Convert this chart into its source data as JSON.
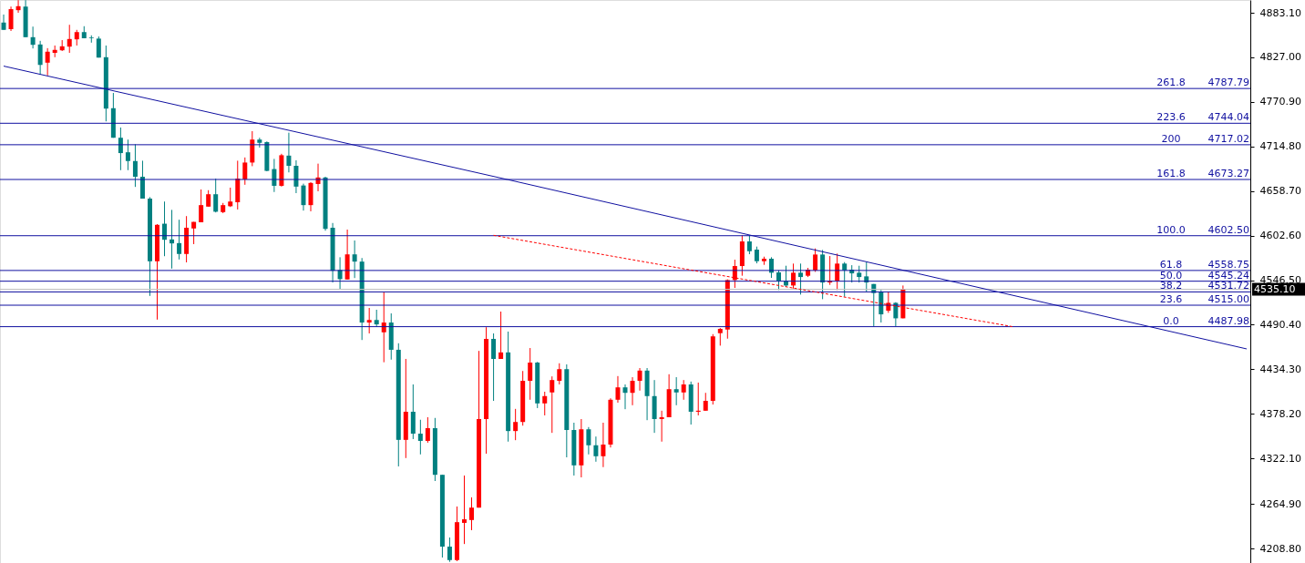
{
  "chart_data": {
    "type": "candlestick",
    "categories": [
      null,
      null,
      null,
      null,
      null,
      null,
      null,
      null,
      null,
      null,
      null,
      null,
      null,
      null,
      null,
      null,
      null,
      null,
      null,
      null,
      null,
      null,
      null,
      null,
      null,
      null,
      null,
      null,
      null,
      null,
      null,
      null,
      null,
      null,
      null,
      null,
      null,
      null,
      null,
      null,
      null,
      null,
      null,
      null,
      null,
      null,
      null,
      null,
      null,
      null,
      null,
      null,
      null,
      null,
      null,
      null,
      null,
      null,
      null,
      null,
      null,
      null,
      null,
      null,
      null,
      null,
      null,
      null,
      null,
      null,
      null,
      null,
      null,
      null,
      null,
      null,
      null,
      null,
      null,
      null,
      null,
      null,
      null,
      null,
      null,
      null,
      null,
      null,
      null,
      null,
      null,
      null,
      null,
      null,
      null,
      null,
      null,
      null,
      null,
      null,
      null,
      null,
      null,
      null,
      null,
      null,
      null,
      null,
      null,
      null,
      null,
      null,
      null,
      null,
      null,
      null,
      null,
      null,
      null,
      null,
      null,
      null,
      null,
      null,
      null,
      null,
      null,
      null,
      null,
      null,
      null,
      null,
      null,
      null,
      null,
      null,
      null,
      null,
      null,
      null,
      null,
      null,
      null,
      null,
      null,
      null,
      null,
      null,
      null,
      null,
      null,
      null,
      null,
      null,
      null,
      null,
      null,
      null,
      null,
      null,
      null,
      null,
      null,
      null,
      null,
      null,
      null,
      null,
      null,
      null,
      null
    ],
    "ohlc": [
      [
        4870.8,
        4880.9,
        4861.6,
        4861.6
      ],
      [
        4862.5,
        4890.9,
        4860.2,
        4887.7
      ],
      [
        4886.4,
        4899,
        4883.1,
        4891.4
      ],
      [
        4890.9,
        4899,
        4852.4,
        4852.4
      ],
      [
        4852.4,
        4865.7,
        4838.2,
        4842.8
      ],
      [
        4843.2,
        4847.8,
        4805.2,
        4817.5
      ],
      [
        4820.3,
        4838.6,
        4804.3,
        4834.1
      ],
      [
        4832.7,
        4841.9,
        4827.2,
        4836.4
      ],
      [
        4835.9,
        4848.7,
        4835.0,
        4840.9
      ],
      [
        4840.5,
        4868.0,
        4832.7,
        4850.1
      ],
      [
        4849.7,
        4861.6,
        4841.9,
        4858.8
      ],
      [
        4858.8,
        4866.2,
        4851.0,
        4851.0
      ],
      [
        4851.9,
        4854.7,
        4845.5,
        4851.0
      ],
      [
        4850.6,
        4853.3,
        4826.7,
        4826.7
      ],
      [
        4827.2,
        4841.9,
        4746.4,
        4762.5
      ],
      [
        4763.0,
        4782.2,
        4725.8,
        4725.8
      ],
      [
        4725.8,
        4738.7,
        4685.0,
        4706.5
      ],
      [
        4707.5,
        4723.5,
        4685.0,
        4696.5
      ],
      [
        4696.5,
        4717.6,
        4663.9,
        4676.7
      ],
      [
        4676.7,
        4696.9,
        4649.2,
        4649.2
      ],
      [
        4649.2,
        4651.0,
        4526.7,
        4570.3
      ],
      [
        4570.3,
        4617.1,
        4496.9,
        4616.2
      ],
      [
        4617.6,
        4645.5,
        4576.7,
        4597.4
      ],
      [
        4597.8,
        4635.0,
        4561.1,
        4592.8
      ],
      [
        4593.2,
        4622.6,
        4572.6,
        4579.5
      ],
      [
        4579.5,
        4627.2,
        4568.9,
        4612.5
      ],
      [
        4611.6,
        4619.9,
        4591.9,
        4619.9
      ],
      [
        4619.4,
        4660.7,
        4619.4,
        4641.0
      ],
      [
        4639.1,
        4659.8,
        4639.1,
        4654.7
      ],
      [
        4654.7,
        4674.4,
        4631.8,
        4632.7
      ],
      [
        4632.2,
        4643.7,
        4630.9,
        4641.0
      ],
      [
        4639.6,
        4663.0,
        4638.6,
        4645.5
      ],
      [
        4644.6,
        4696.9,
        4635.5,
        4674.4
      ],
      [
        4673.5,
        4701.0,
        4666.6,
        4694.6
      ],
      [
        4694.6,
        4734.1,
        4690.0,
        4723.5
      ],
      [
        4723.5,
        4725.8,
        4713.4,
        4719.4
      ],
      [
        4720.3,
        4721.2,
        4683.6,
        4684.1
      ],
      [
        4686.4,
        4699.2,
        4657.5,
        4665.3
      ],
      [
        4665.3,
        4705.6,
        4664.3,
        4703.8
      ],
      [
        4703.3,
        4732.2,
        4682.2,
        4690.5
      ],
      [
        4690.5,
        4697.4,
        4656.1,
        4664.3
      ],
      [
        4665.7,
        4668.0,
        4634.1,
        4641.0
      ],
      [
        4641.0,
        4669.9,
        4633.2,
        4668.9
      ],
      [
        4667.6,
        4693.2,
        4658.4,
        4675.8
      ],
      [
        4675.8,
        4676.7,
        4608.8,
        4611.1
      ],
      [
        4612.5,
        4618.5,
        4543.7,
        4558.4
      ],
      [
        4559.3,
        4575.4,
        4535.5,
        4547.8
      ],
      [
        4547.4,
        4610.2,
        4547.4,
        4579.0
      ],
      [
        4579.0,
        4596.5,
        4549.2,
        4569.9
      ],
      [
        4569.9,
        4574.4,
        4471.2,
        4493.2
      ],
      [
        4493.2,
        4511.6,
        4479.5,
        4496.4
      ],
      [
        4496.4,
        4509.3,
        4487.7,
        4490.9
      ],
      [
        4480.9,
        4531.3,
        4443.2,
        4493.2
      ],
      [
        4493.2,
        4504.7,
        4446.5,
        4458.9
      ],
      [
        4458.9,
        4467.1,
        4312.1,
        4345.5
      ],
      [
        4345.5,
        4447.4,
        4322.6,
        4380.9
      ],
      [
        4380.9,
        4415.3,
        4346.5,
        4353.3
      ],
      [
        4353.3,
        4370.8,
        4327.2,
        4344.2
      ],
      [
        4344.2,
        4374.0,
        4341.9,
        4360.2
      ],
      [
        4360.2,
        4373.1,
        4293.7,
        4301.5
      ],
      [
        4301.5,
        4301.5,
        4197.4,
        4211.1
      ],
      [
        4211.1,
        4222.6,
        4192.0,
        4194.2
      ],
      [
        4194.2,
        4261.6,
        4192.8,
        4241.9
      ],
      [
        4241.0,
        4300.6,
        4214.4,
        4245.5
      ],
      [
        4244.6,
        4273.1,
        4231.8,
        4260.2
      ],
      [
        4260.2,
        4457.5,
        4260.2,
        4371.7
      ],
      [
        4371.7,
        4487.3,
        4328.1,
        4472.6
      ],
      [
        4472.6,
        4479.5,
        4394.6,
        4447.4
      ],
      [
        4447.4,
        4507.0,
        4447.4,
        4455.6
      ],
      [
        4455.6,
        4481.8,
        4343.3,
        4356.6
      ],
      [
        4356.6,
        4384.5,
        4345.1,
        4368.0
      ],
      [
        4368.0,
        4432.2,
        4363.4,
        4419.8
      ],
      [
        4419.8,
        4461.1,
        4396.0,
        4442.8
      ],
      [
        4442.8,
        4443.7,
        4385.5,
        4391.4
      ],
      [
        4391.4,
        4406.1,
        4376.3,
        4400.6
      ],
      [
        4405.2,
        4425.4,
        4354.3,
        4420.8
      ],
      [
        4419.8,
        4441.9,
        4415.3,
        4434.5
      ],
      [
        4434.5,
        4440.5,
        4323.5,
        4357.9
      ],
      [
        4357.9,
        4367.1,
        4300.6,
        4313.4
      ],
      [
        4313.4,
        4371.7,
        4298.3,
        4358.8
      ],
      [
        4358.8,
        4361.6,
        4327.2,
        4338.7
      ],
      [
        4338.7,
        4349.7,
        4318.0,
        4324.9
      ],
      [
        4324.9,
        4367.1,
        4311.2,
        4339.6
      ],
      [
        4339.6,
        4397.8,
        4335.9,
        4396.0
      ],
      [
        4396.0,
        4425.8,
        4392.3,
        4411.6
      ],
      [
        4411.6,
        4415.3,
        4384.1,
        4404.7
      ],
      [
        4404.7,
        4424.4,
        4389.1,
        4419.8
      ],
      [
        4419.8,
        4435.9,
        4407.5,
        4432.7
      ],
      [
        4432.7,
        4435.9,
        4370.3,
        4400.6
      ],
      [
        4400.6,
        4420.8,
        4354.3,
        4371.7
      ],
      [
        4371.7,
        4382.2,
        4343.3,
        4374.0
      ],
      [
        4374.0,
        4428.1,
        4374.0,
        4409.3
      ],
      [
        4409.3,
        4424.4,
        4389.1,
        4405.2
      ],
      [
        4405.2,
        4420.8,
        4396.0,
        4415.3
      ],
      [
        4415.3,
        4418.9,
        4364.8,
        4380.9
      ],
      [
        4380.9,
        4417.6,
        4376.3,
        4382.2
      ],
      [
        4382.2,
        4404.7,
        4382.2,
        4394.6
      ],
      [
        4394.6,
        4478.6,
        4390.0,
        4475.8
      ],
      [
        4479.8,
        4486.3,
        4464.1,
        4485.2
      ],
      [
        4484.4,
        4547.5,
        4472.9,
        4546.7
      ],
      [
        4546.7,
        4572.3,
        4536.8,
        4564.3
      ],
      [
        4564.3,
        4602.9,
        4552.1,
        4595.3
      ],
      [
        4595.3,
        4602.9,
        4579.2,
        4583.0
      ],
      [
        4585.0,
        4588.8,
        4567.7,
        4570.4
      ],
      [
        4570.4,
        4576.1,
        4565.8,
        4573.5
      ],
      [
        4573.5,
        4575.4,
        4549.4,
        4555.9
      ],
      [
        4556.3,
        4558.9,
        4534.1,
        4545.6
      ],
      [
        4545.6,
        4564.7,
        4537.9,
        4539.8
      ],
      [
        4539.8,
        4567.4,
        4536.0,
        4555.9
      ],
      [
        4555.9,
        4567.4,
        4528.4,
        4550.5
      ],
      [
        4552.1,
        4562.0,
        4550.5,
        4559.7
      ],
      [
        4558.9,
        4586.5,
        4557.0,
        4578.8
      ],
      [
        4578.8,
        4584.6,
        4522.6,
        4543.6
      ],
      [
        4543.6,
        4576.9,
        4540.6,
        4545.6
      ],
      [
        4545.6,
        4580.0,
        4534.1,
        4567.4
      ],
      [
        4567.4,
        4569.3,
        4525.7,
        4558.9
      ],
      [
        4559.7,
        4565.4,
        4543.6,
        4555.1
      ],
      [
        4555.9,
        4564.7,
        4543.6,
        4550.5
      ],
      [
        4551.3,
        4569.3,
        4532.2,
        4543.6
      ],
      [
        4541.7,
        4541.7,
        4488.2,
        4530.3
      ],
      [
        4532.2,
        4534.1,
        4493.2,
        4503.5
      ],
      [
        4508.1,
        4532.2,
        4505.4,
        4518.0
      ],
      [
        4518.0,
        4518.8,
        4488.2,
        4498.5
      ],
      [
        4498.5,
        4539.8,
        4498.5,
        4535.1
      ],
      null,
      null,
      null,
      null,
      null,
      null,
      null,
      null,
      null,
      null,
      null,
      null,
      null,
      null,
      null,
      null,
      null,
      null,
      null,
      null,
      null,
      null,
      null,
      null,
      null,
      null,
      null,
      null,
      null,
      null,
      null,
      null,
      null,
      null,
      null,
      null,
      null,
      null,
      null,
      null,
      null,
      null,
      null,
      null,
      null,
      null,
      null
    ],
    "colors": [
      "#008080",
      "#ff0000",
      "#ff0000",
      "#008080",
      "#008080",
      "#008080",
      "#ff0000",
      "#ff0000",
      "#ff0000",
      "#ff0000",
      "#ff0000",
      "#008080",
      "#008080",
      "#008080",
      "#008080",
      "#008080",
      "#008080",
      "#008080",
      "#008080",
      "#008080",
      "#008080",
      "#ff0000",
      "#008080",
      "#008080",
      "#008080",
      "#ff0000",
      "#ff0000",
      "#ff0000",
      "#ff0000",
      "#008080",
      "#ff0000",
      "#ff0000",
      "#ff0000",
      "#ff0000",
      "#ff0000",
      "#008080",
      "#008080",
      "#008080",
      "#ff0000",
      "#008080",
      "#008080",
      "#008080",
      "#ff0000",
      "#ff0000",
      "#008080",
      "#008080",
      "#008080",
      "#ff0000",
      "#008080",
      "#008080",
      "#ff0000",
      "#008080",
      "#ff0000",
      "#008080",
      "#008080",
      "#ff0000",
      "#008080",
      "#008080",
      "#ff0000",
      "#008080",
      "#008080",
      "#008080",
      "#ff0000",
      "#ff0000",
      "#ff0000",
      "#ff0000",
      "#ff0000",
      "#008080",
      "#ff0000",
      "#008080",
      "#ff0000",
      "#ff0000",
      "#ff0000",
      "#008080",
      "#ff0000",
      "#ff0000",
      "#ff0000",
      "#008080",
      "#008080",
      "#ff0000",
      "#008080",
      "#008080",
      "#ff0000",
      "#ff0000",
      "#ff0000",
      "#008080",
      "#ff0000",
      "#ff0000",
      "#008080",
      "#008080",
      "#ff0000",
      "#ff0000",
      "#008080",
      "#ff0000",
      "#008080",
      "#ff0000",
      "#ff0000",
      "#ff0000",
      "#ff0000",
      "#ff0000",
      "#ff0000",
      "#ff0000",
      "#008080",
      "#008080",
      "#ff0000",
      "#008080",
      "#008080",
      "#008080",
      "#ff0000",
      "#008080",
      "#ff0000",
      "#ff0000",
      "#008080",
      "#ff0000",
      "#ff0000",
      "#008080",
      "#008080",
      "#008080",
      "#008080",
      "#008080",
      "#008080",
      "#ff0000",
      "#008080",
      "#ff0000",
      null,
      null,
      null,
      null,
      null,
      null,
      null,
      null,
      null,
      null,
      null,
      null,
      null,
      null,
      null,
      null,
      null,
      null,
      null,
      null,
      null,
      null,
      null,
      null,
      null,
      null,
      null,
      null,
      null,
      null,
      null,
      null,
      null,
      null,
      null,
      null,
      null,
      null,
      null,
      null,
      null,
      null,
      null,
      null,
      null,
      null,
      null
    ],
    "series": [
      {
        "type": "line",
        "color": "#1010a0",
        "line_style": "solid",
        "values": [
          4816,
          null,
          null,
          null,
          null,
          null,
          null,
          null,
          null,
          null,
          null,
          null,
          null,
          null,
          null,
          null,
          null,
          null,
          null,
          null,
          null,
          null,
          null,
          null,
          null,
          null,
          null,
          null,
          null,
          null,
          null,
          null,
          null,
          null,
          null,
          null,
          null,
          null,
          null,
          null,
          null,
          null,
          null,
          null,
          null,
          null,
          null,
          null,
          null,
          null,
          null,
          null,
          null,
          null,
          null,
          null,
          null,
          null,
          null,
          null,
          null,
          null,
          null,
          null,
          null,
          null,
          null,
          null,
          null,
          4673,
          null,
          null,
          null,
          null,
          null,
          null,
          null,
          null,
          null,
          null,
          null,
          null,
          null,
          null,
          null,
          null,
          null,
          null,
          null,
          null,
          null,
          null,
          null,
          null,
          null,
          null,
          null,
          null,
          null,
          null,
          null,
          null,
          null,
          null,
          null,
          null,
          null,
          null,
          null,
          null,
          null,
          null,
          null,
          null,
          null,
          null,
          null,
          null,
          null,
          null,
          null,
          null,
          null,
          null,
          null,
          null,
          null,
          null,
          null,
          null,
          null,
          null,
          null,
          null,
          null,
          null,
          null,
          null,
          null,
          null,
          null,
          null,
          null,
          null,
          null,
          null,
          null,
          null,
          null,
          null,
          null,
          null,
          null,
          null,
          null,
          null,
          null,
          null,
          null,
          null,
          null,
          null,
          null,
          null,
          null,
          null,
          null,
          null,
          null,
          null,
          4460
        ]
      },
      {
        "type": "line",
        "color": "#ff0000",
        "line_style": "dashed",
        "values": [
          null,
          null,
          null,
          null,
          null,
          null,
          null,
          null,
          null,
          null,
          null,
          null,
          null,
          null,
          null,
          null,
          null,
          null,
          null,
          null,
          null,
          null,
          null,
          null,
          null,
          null,
          null,
          null,
          null,
          null,
          null,
          null,
          null,
          null,
          null,
          null,
          null,
          null,
          null,
          null,
          null,
          null,
          null,
          null,
          null,
          null,
          null,
          null,
          null,
          null,
          null,
          null,
          null,
          null,
          null,
          null,
          null,
          null,
          null,
          null,
          null,
          null,
          null,
          null,
          null,
          null,
          null,
          4603,
          null,
          null,
          null,
          null,
          null,
          null,
          null,
          null,
          null,
          null,
          null,
          null,
          null,
          null,
          null,
          null,
          null,
          null,
          null,
          null,
          null,
          null,
          null,
          null,
          null,
          null,
          null,
          null,
          null,
          null,
          null,
          null,
          null,
          null,
          null,
          null,
          null,
          null,
          null,
          null,
          null,
          null,
          null,
          null,
          null,
          null,
          null,
          null,
          null,
          null,
          null,
          null,
          null,
          null,
          null,
          null,
          null,
          null,
          null,
          null,
          null,
          null,
          null,
          null,
          null,
          null,
          null,
          null,
          null,
          null,
          4488,
          null,
          null,
          null,
          null,
          null,
          null,
          null,
          null,
          null,
          null,
          null,
          null,
          null,
          null,
          null,
          null,
          null,
          null,
          null,
          null,
          null,
          null,
          null,
          null,
          null,
          null,
          null,
          null,
          null,
          null,
          null,
          null
        ]
      }
    ],
    "ref_lines": [
      {
        "axis": "y",
        "value": 4787.79,
        "label": "4787.79",
        "color": "#1010a0"
      },
      {
        "axis": "y",
        "value": 4744.04,
        "label": "4744.04",
        "color": "#1010a0"
      },
      {
        "axis": "y",
        "value": 4717.02,
        "label": "4717.02",
        "color": "#1010a0"
      },
      {
        "axis": "y",
        "value": 4673.27,
        "label": "4673.27",
        "color": "#1010a0"
      },
      {
        "axis": "y",
        "value": 4602.5,
        "label": "4602.50",
        "color": "#1010a0"
      },
      {
        "axis": "y",
        "value": 4558.75,
        "label": "4558.75",
        "color": "#1010a0"
      },
      {
        "axis": "y",
        "value": 4545.24,
        "label": "4545.24",
        "color": "#1010a0"
      },
      {
        "axis": "y",
        "value": 4531.72,
        "label": "4531.72",
        "color": "#1010a0"
      },
      {
        "axis": "y",
        "value": 4515.0,
        "label": "4515.00",
        "color": "#1010a0"
      },
      {
        "axis": "y",
        "value": 4487.98,
        "label": "4487.98",
        "color": "#1010a0"
      },
      {
        "axis": "y",
        "value": 4535.1,
        "label": "4535.10",
        "color": "#c0c0c0"
      }
    ],
    "annotations": [
      {
        "text": "261.8",
        "y": 4787.79
      },
      {
        "text": "223.6",
        "y": 4744.04
      },
      {
        "text": "200",
        "y": 4717.02
      },
      {
        "text": "161.8",
        "y": 4673.27
      },
      {
        "text": "100.0",
        "y": 4602.5
      },
      {
        "text": "61.8",
        "y": 4558.75
      },
      {
        "text": "50.0",
        "y": 4545.24
      },
      {
        "text": "38.2",
        "y": 4531.72
      },
      {
        "text": "23.6",
        "y": 4515.0
      },
      {
        "text": "0.0",
        "y": 4487.98
      }
    ],
    "ylim": [
      4190.5,
      4899.2
    ],
    "yticks": [
      {
        "value": 4883.1,
        "label": "4883.10"
      },
      {
        "value": 4827.0,
        "label": "4827.00"
      },
      {
        "value": 4770.9,
        "label": "4770.90"
      },
      {
        "value": 4714.8,
        "label": "4714.80"
      },
      {
        "value": 4658.7,
        "label": "4658.70"
      },
      {
        "value": 4602.6,
        "label": "4602.60"
      },
      {
        "value": 4546.5,
        "label": "4546.50"
      },
      {
        "value": 4490.4,
        "label": "4490.40"
      },
      {
        "value": 4434.3,
        "label": "4434.30"
      },
      {
        "value": 4378.2,
        "label": "4378.20"
      },
      {
        "value": 4322.1,
        "label": "4322.10"
      },
      {
        "value": 4264.9,
        "label": "4264.90"
      },
      {
        "value": 4208.8,
        "label": "4208.80"
      }
    ],
    "tick_labels": "y",
    "grid": false
  }
}
